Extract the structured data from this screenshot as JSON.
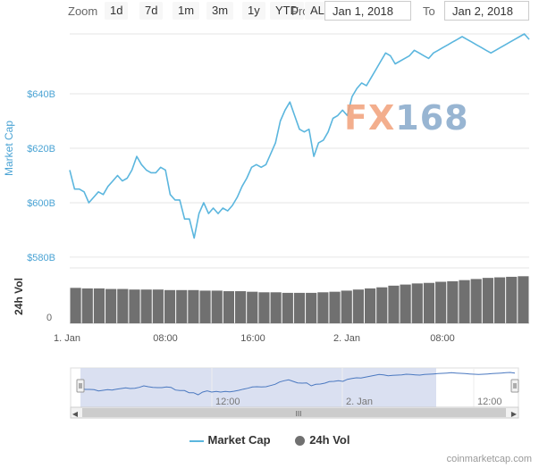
{
  "toolbar": {
    "zoom_label": "Zoom",
    "buttons": [
      "1d",
      "7d",
      "1m",
      "3m",
      "1y",
      "YTD",
      "ALL"
    ],
    "from_label": "From",
    "to_label": "To",
    "from_value": "Jan 1, 2018",
    "to_value": "Jan 2, 2018"
  },
  "watermark": {
    "left": "FX",
    "right": "168"
  },
  "credit": "coinmarketcap.com",
  "legend": {
    "series1": "Market Cap",
    "series2": "24h Vol"
  },
  "colors": {
    "line": "#5bb6de",
    "bars": "#707070",
    "navigator_fill": "#d4dbee",
    "axis_label": "#4aa3d4"
  },
  "chart_data": {
    "type": "line",
    "title": "",
    "ylabel": "Market Cap",
    "ylabel2": "24h Vol",
    "y_ticks": [
      "$580B",
      "$600B",
      "$620B",
      "$640B"
    ],
    "y_range": [
      578,
      662
    ],
    "vol_ticks": [
      "0"
    ],
    "x_ticks": [
      "1. Jan",
      "08:00",
      "16:00",
      "2. Jan",
      "08:00"
    ],
    "navigator_ticks": [
      "12:00",
      "2. Jan",
      "12:00"
    ],
    "series": [
      {
        "name": "Market Cap",
        "x": [
          0,
          0.5,
          1,
          1.5,
          2,
          2.5,
          3,
          3.5,
          4,
          4.5,
          5,
          5.5,
          6,
          6.5,
          7,
          7.5,
          8,
          8.5,
          9,
          9.5,
          10,
          10.5,
          11,
          11.5,
          12,
          12.5,
          13,
          13.5,
          14,
          14.5,
          15,
          15.5,
          16,
          16.5,
          17,
          17.5,
          18,
          18.5,
          19,
          19.5,
          20,
          20.5,
          21,
          21.5,
          22,
          22.5,
          23,
          23.5,
          24,
          24.5,
          25,
          25.5,
          26,
          26.5,
          27,
          27.5,
          28,
          28.5,
          29,
          29.5,
          30,
          30.5,
          31,
          31.5,
          32,
          32.5,
          33,
          33.5,
          34,
          34.5,
          35,
          35.5,
          36,
          36.5,
          37,
          37.5,
          38,
          38.5,
          39,
          39.5,
          40,
          40.5,
          41,
          41.5,
          42,
          42.5,
          43,
          43.5,
          44,
          44.5,
          45,
          45.5,
          46,
          46.5,
          47,
          47.5,
          48
        ],
        "values": [
          612,
          605,
          605,
          604,
          600,
          602,
          604,
          603,
          606,
          608,
          610,
          608,
          609,
          612,
          617,
          614,
          612,
          611,
          611,
          613,
          612,
          603,
          601,
          601,
          594,
          594,
          587,
          596,
          600,
          596,
          598,
          596,
          598,
          597,
          599,
          602,
          606,
          609,
          613,
          614,
          613,
          614,
          618,
          622,
          630,
          634,
          637,
          632,
          627,
          626,
          627,
          617,
          622,
          623,
          626,
          631,
          632,
          634,
          632,
          639,
          642,
          644,
          643,
          646,
          649,
          652,
          655,
          654,
          651,
          652,
          653,
          654,
          656,
          655,
          654,
          653,
          655,
          656,
          657,
          658,
          659,
          660,
          661,
          660,
          659,
          658,
          657,
          656,
          655,
          656,
          657,
          658,
          659,
          660,
          661,
          662,
          660
        ]
      },
      {
        "name": "24h Vol",
        "values": [
          0.64,
          0.63,
          0.63,
          0.62,
          0.62,
          0.61,
          0.61,
          0.61,
          0.6,
          0.6,
          0.6,
          0.59,
          0.59,
          0.58,
          0.58,
          0.57,
          0.56,
          0.56,
          0.55,
          0.55,
          0.55,
          0.56,
          0.57,
          0.59,
          0.61,
          0.63,
          0.65,
          0.68,
          0.7,
          0.72,
          0.73,
          0.75,
          0.76,
          0.78,
          0.8,
          0.82,
          0.83,
          0.84,
          0.85
        ]
      }
    ],
    "grid": true,
    "legend_position": "bottom-center"
  }
}
